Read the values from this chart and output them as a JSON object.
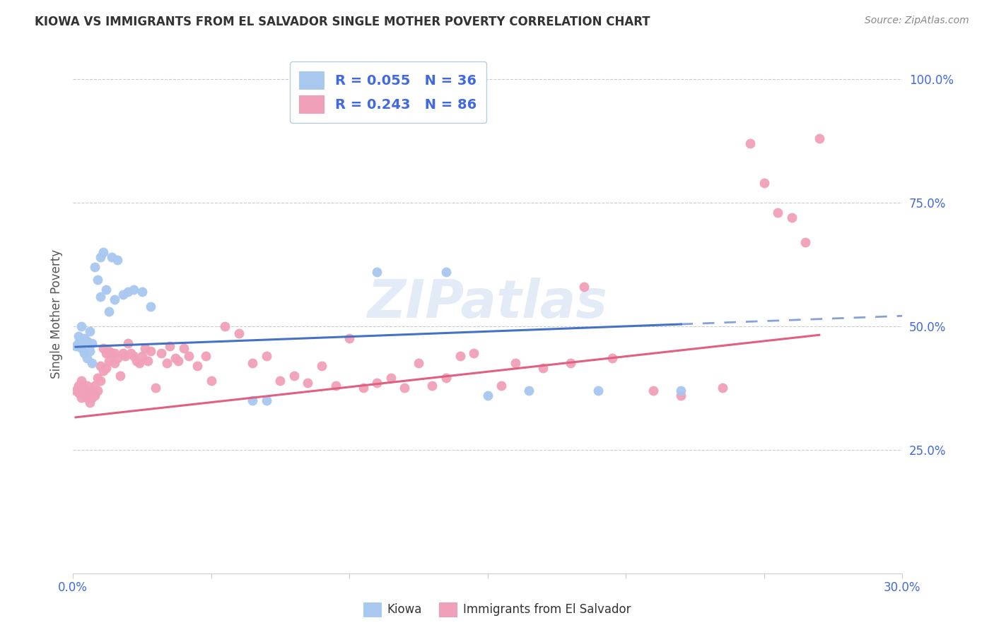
{
  "title": "KIOWA VS IMMIGRANTS FROM EL SALVADOR SINGLE MOTHER POVERTY CORRELATION CHART",
  "source": "Source: ZipAtlas.com",
  "ylabel": "Single Mother Poverty",
  "xlim": [
    0.0,
    0.3
  ],
  "ylim": [
    0.0,
    1.05
  ],
  "xticks": [
    0.0,
    0.05,
    0.1,
    0.15,
    0.2,
    0.25,
    0.3
  ],
  "xticklabels": [
    "0.0%",
    "",
    "",
    "",
    "",
    "",
    "30.0%"
  ],
  "ytick_positions": [
    0.25,
    0.5,
    0.75,
    1.0
  ],
  "ytick_labels": [
    "25.0%",
    "50.0%",
    "75.0%",
    "100.0%"
  ],
  "blue_color": "#A8C8F0",
  "pink_color": "#F0A0B8",
  "blue_line_color": "#4472C4",
  "pink_line_color": "#E06080",
  "legend_blue_label": "R = 0.055   N = 36",
  "legend_pink_label": "R = 0.243   N = 86",
  "legend_label_color": "#4169E1",
  "watermark": "ZIPatlas",
  "kiowa_label": "Kiowa",
  "elsalvador_label": "Immigrants from El Salvador",
  "blue_intercept": 0.458,
  "blue_slope": 0.21,
  "pink_intercept": 0.315,
  "pink_slope": 0.62,
  "blue_x": [
    0.001,
    0.002,
    0.002,
    0.003,
    0.003,
    0.004,
    0.004,
    0.005,
    0.005,
    0.006,
    0.006,
    0.007,
    0.007,
    0.008,
    0.009,
    0.01,
    0.01,
    0.011,
    0.012,
    0.013,
    0.014,
    0.015,
    0.016,
    0.018,
    0.02,
    0.022,
    0.025,
    0.028,
    0.065,
    0.07,
    0.11,
    0.135,
    0.15,
    0.165,
    0.19,
    0.22
  ],
  "blue_y": [
    0.46,
    0.465,
    0.48,
    0.455,
    0.5,
    0.445,
    0.475,
    0.435,
    0.47,
    0.45,
    0.49,
    0.425,
    0.465,
    0.62,
    0.595,
    0.56,
    0.64,
    0.65,
    0.575,
    0.53,
    0.64,
    0.555,
    0.635,
    0.565,
    0.57,
    0.575,
    0.57,
    0.54,
    0.35,
    0.35,
    0.61,
    0.61,
    0.36,
    0.37,
    0.37,
    0.37
  ],
  "pink_x": [
    0.001,
    0.002,
    0.002,
    0.003,
    0.003,
    0.004,
    0.004,
    0.005,
    0.005,
    0.006,
    0.006,
    0.007,
    0.007,
    0.008,
    0.008,
    0.009,
    0.009,
    0.01,
    0.01,
    0.011,
    0.011,
    0.012,
    0.012,
    0.013,
    0.013,
    0.014,
    0.015,
    0.015,
    0.016,
    0.017,
    0.018,
    0.019,
    0.02,
    0.021,
    0.022,
    0.023,
    0.024,
    0.025,
    0.026,
    0.027,
    0.028,
    0.03,
    0.032,
    0.034,
    0.035,
    0.037,
    0.038,
    0.04,
    0.042,
    0.045,
    0.048,
    0.05,
    0.055,
    0.06,
    0.065,
    0.07,
    0.075,
    0.08,
    0.085,
    0.09,
    0.095,
    0.1,
    0.105,
    0.11,
    0.115,
    0.12,
    0.125,
    0.13,
    0.135,
    0.14,
    0.145,
    0.155,
    0.16,
    0.17,
    0.18,
    0.185,
    0.195,
    0.21,
    0.22,
    0.235,
    0.245,
    0.25,
    0.255,
    0.26,
    0.265,
    0.27
  ],
  "pink_y": [
    0.37,
    0.38,
    0.365,
    0.355,
    0.39,
    0.36,
    0.375,
    0.355,
    0.38,
    0.345,
    0.365,
    0.355,
    0.37,
    0.36,
    0.38,
    0.395,
    0.37,
    0.42,
    0.39,
    0.455,
    0.41,
    0.415,
    0.445,
    0.43,
    0.45,
    0.445,
    0.425,
    0.445,
    0.435,
    0.4,
    0.445,
    0.44,
    0.465,
    0.445,
    0.44,
    0.43,
    0.425,
    0.44,
    0.455,
    0.43,
    0.45,
    0.375,
    0.445,
    0.425,
    0.46,
    0.435,
    0.43,
    0.455,
    0.44,
    0.42,
    0.44,
    0.39,
    0.5,
    0.485,
    0.425,
    0.44,
    0.39,
    0.4,
    0.385,
    0.42,
    0.38,
    0.475,
    0.375,
    0.385,
    0.395,
    0.375,
    0.425,
    0.38,
    0.395,
    0.44,
    0.445,
    0.38,
    0.425,
    0.415,
    0.425,
    0.58,
    0.435,
    0.37,
    0.36,
    0.375,
    0.87,
    0.79,
    0.73,
    0.72,
    0.67,
    0.88
  ]
}
